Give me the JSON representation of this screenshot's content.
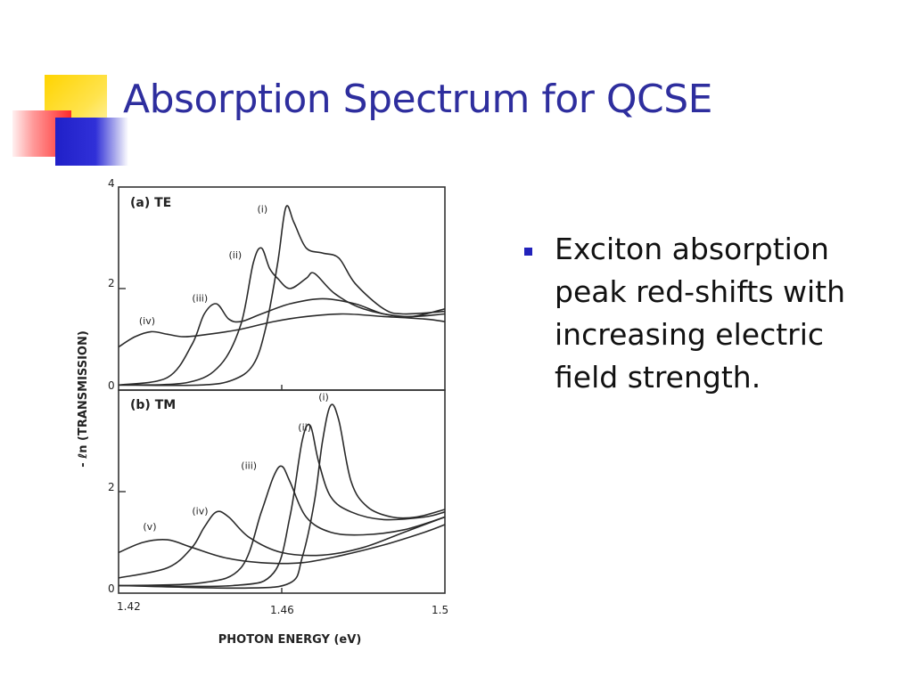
{
  "slide": {
    "title": "Absorption Spectrum for QCSE",
    "bullet": "Exciton absorption peak red-shifts with increasing electric field strength."
  },
  "colors": {
    "title": "#2e2e9e",
    "bullet_marker": "#2222bb",
    "deco_yellow": "#ffd400",
    "deco_red": "#ff3333",
    "deco_blue": "#2a2acc"
  },
  "chart_data": [
    {
      "type": "line",
      "panel_label": "(a) TE",
      "xlabel": "PHOTON ENERGY (eV)",
      "ylabel": "- ℓn (TRANSMISSION)",
      "xlim": [
        1.42,
        1.5
      ],
      "ylim": [
        0,
        4
      ],
      "yticks": [
        "4",
        "2",
        "0"
      ],
      "series": [
        {
          "name": "(i)",
          "label_at": [
            1.454,
            3.5
          ],
          "points": [
            [
              1.42,
              0.1
            ],
            [
              1.44,
              0.1
            ],
            [
              1.448,
              0.2
            ],
            [
              1.453,
              0.5
            ],
            [
              1.456,
              1.2
            ],
            [
              1.459,
              2.5
            ],
            [
              1.461,
              3.6
            ],
            [
              1.463,
              3.3
            ],
            [
              1.466,
              2.8
            ],
            [
              1.47,
              2.7
            ],
            [
              1.474,
              2.6
            ],
            [
              1.478,
              2.1
            ],
            [
              1.485,
              1.6
            ],
            [
              1.49,
              1.5
            ],
            [
              1.5,
              1.55
            ]
          ]
        },
        {
          "name": "(ii)",
          "label_at": [
            1.447,
            2.6
          ],
          "points": [
            [
              1.42,
              0.1
            ],
            [
              1.437,
              0.15
            ],
            [
              1.445,
              0.5
            ],
            [
              1.45,
              1.3
            ],
            [
              1.453,
              2.5
            ],
            [
              1.455,
              2.8
            ],
            [
              1.457,
              2.4
            ],
            [
              1.459,
              2.2
            ],
            [
              1.462,
              2.0
            ],
            [
              1.466,
              2.2
            ],
            [
              1.468,
              2.3
            ],
            [
              1.473,
              1.9
            ],
            [
              1.48,
              1.6
            ],
            [
              1.49,
              1.45
            ],
            [
              1.5,
              1.5
            ]
          ]
        },
        {
          "name": "(iii)",
          "label_at": [
            1.438,
            1.75
          ],
          "points": [
            [
              1.42,
              0.1
            ],
            [
              1.432,
              0.25
            ],
            [
              1.438,
              0.9
            ],
            [
              1.441,
              1.5
            ],
            [
              1.444,
              1.7
            ],
            [
              1.447,
              1.4
            ],
            [
              1.45,
              1.35
            ],
            [
              1.455,
              1.5
            ],
            [
              1.462,
              1.7
            ],
            [
              1.47,
              1.8
            ],
            [
              1.478,
              1.7
            ],
            [
              1.485,
              1.5
            ],
            [
              1.492,
              1.45
            ],
            [
              1.5,
              1.6
            ]
          ]
        },
        {
          "name": "(iv)",
          "label_at": [
            1.425,
            1.3
          ],
          "points": [
            [
              1.42,
              0.85
            ],
            [
              1.424,
              1.05
            ],
            [
              1.428,
              1.15
            ],
            [
              1.432,
              1.1
            ],
            [
              1.436,
              1.05
            ],
            [
              1.442,
              1.1
            ],
            [
              1.45,
              1.2
            ],
            [
              1.458,
              1.35
            ],
            [
              1.466,
              1.45
            ],
            [
              1.475,
              1.5
            ],
            [
              1.485,
              1.45
            ],
            [
              1.495,
              1.4
            ],
            [
              1.5,
              1.35
            ]
          ]
        }
      ]
    },
    {
      "type": "line",
      "panel_label": "(b) TM",
      "xlabel": "PHOTON ENERGY (eV)",
      "ylabel": "- ℓn (TRANSMISSION)",
      "xlim": [
        1.42,
        1.5
      ],
      "ylim": [
        0,
        4
      ],
      "xticks": [
        "1.42",
        "1.46",
        "1.5"
      ],
      "yticks": [
        "2",
        "0"
      ],
      "series": [
        {
          "name": "(i)",
          "label_at": [
            1.469,
            3.8
          ],
          "points": [
            [
              1.42,
              0.15
            ],
            [
              1.45,
              0.1
            ],
            [
              1.462,
              0.2
            ],
            [
              1.465,
              0.7
            ],
            [
              1.468,
              1.8
            ],
            [
              1.47,
              3.0
            ],
            [
              1.472,
              3.7
            ],
            [
              1.474,
              3.4
            ],
            [
              1.477,
              2.2
            ],
            [
              1.481,
              1.7
            ],
            [
              1.487,
              1.5
            ],
            [
              1.493,
              1.5
            ],
            [
              1.5,
              1.65
            ]
          ]
        },
        {
          "name": "(ii)",
          "label_at": [
            1.464,
            3.2
          ],
          "points": [
            [
              1.42,
              0.15
            ],
            [
              1.448,
              0.15
            ],
            [
              1.458,
              0.4
            ],
            [
              1.462,
              1.5
            ],
            [
              1.465,
              3.0
            ],
            [
              1.467,
              3.3
            ],
            [
              1.469,
              2.6
            ],
            [
              1.472,
              1.9
            ],
            [
              1.477,
              1.6
            ],
            [
              1.485,
              1.45
            ],
            [
              1.495,
              1.5
            ],
            [
              1.5,
              1.6
            ]
          ]
        },
        {
          "name": "(iii)",
          "label_at": [
            1.45,
            2.45
          ],
          "points": [
            [
              1.42,
              0.15
            ],
            [
              1.44,
              0.2
            ],
            [
              1.45,
              0.5
            ],
            [
              1.455,
              1.6
            ],
            [
              1.458,
              2.3
            ],
            [
              1.46,
              2.5
            ],
            [
              1.462,
              2.2
            ],
            [
              1.466,
              1.5
            ],
            [
              1.472,
              1.2
            ],
            [
              1.48,
              1.15
            ],
            [
              1.49,
              1.25
            ],
            [
              1.5,
              1.5
            ]
          ]
        },
        {
          "name": "(iv)",
          "label_at": [
            1.438,
            1.55
          ],
          "points": [
            [
              1.42,
              0.3
            ],
            [
              1.432,
              0.5
            ],
            [
              1.438,
              0.9
            ],
            [
              1.441,
              1.3
            ],
            [
              1.444,
              1.6
            ],
            [
              1.447,
              1.5
            ],
            [
              1.452,
              1.1
            ],
            [
              1.46,
              0.8
            ],
            [
              1.47,
              0.75
            ],
            [
              1.48,
              0.9
            ],
            [
              1.49,
              1.2
            ],
            [
              1.5,
              1.5
            ]
          ]
        },
        {
          "name": "(v)",
          "label_at": [
            1.426,
            1.25
          ],
          "points": [
            [
              1.42,
              0.8
            ],
            [
              1.426,
              1.0
            ],
            [
              1.432,
              1.05
            ],
            [
              1.438,
              0.9
            ],
            [
              1.446,
              0.7
            ],
            [
              1.455,
              0.6
            ],
            [
              1.465,
              0.6
            ],
            [
              1.475,
              0.75
            ],
            [
              1.485,
              0.95
            ],
            [
              1.495,
              1.2
            ],
            [
              1.5,
              1.35
            ]
          ]
        }
      ]
    }
  ]
}
